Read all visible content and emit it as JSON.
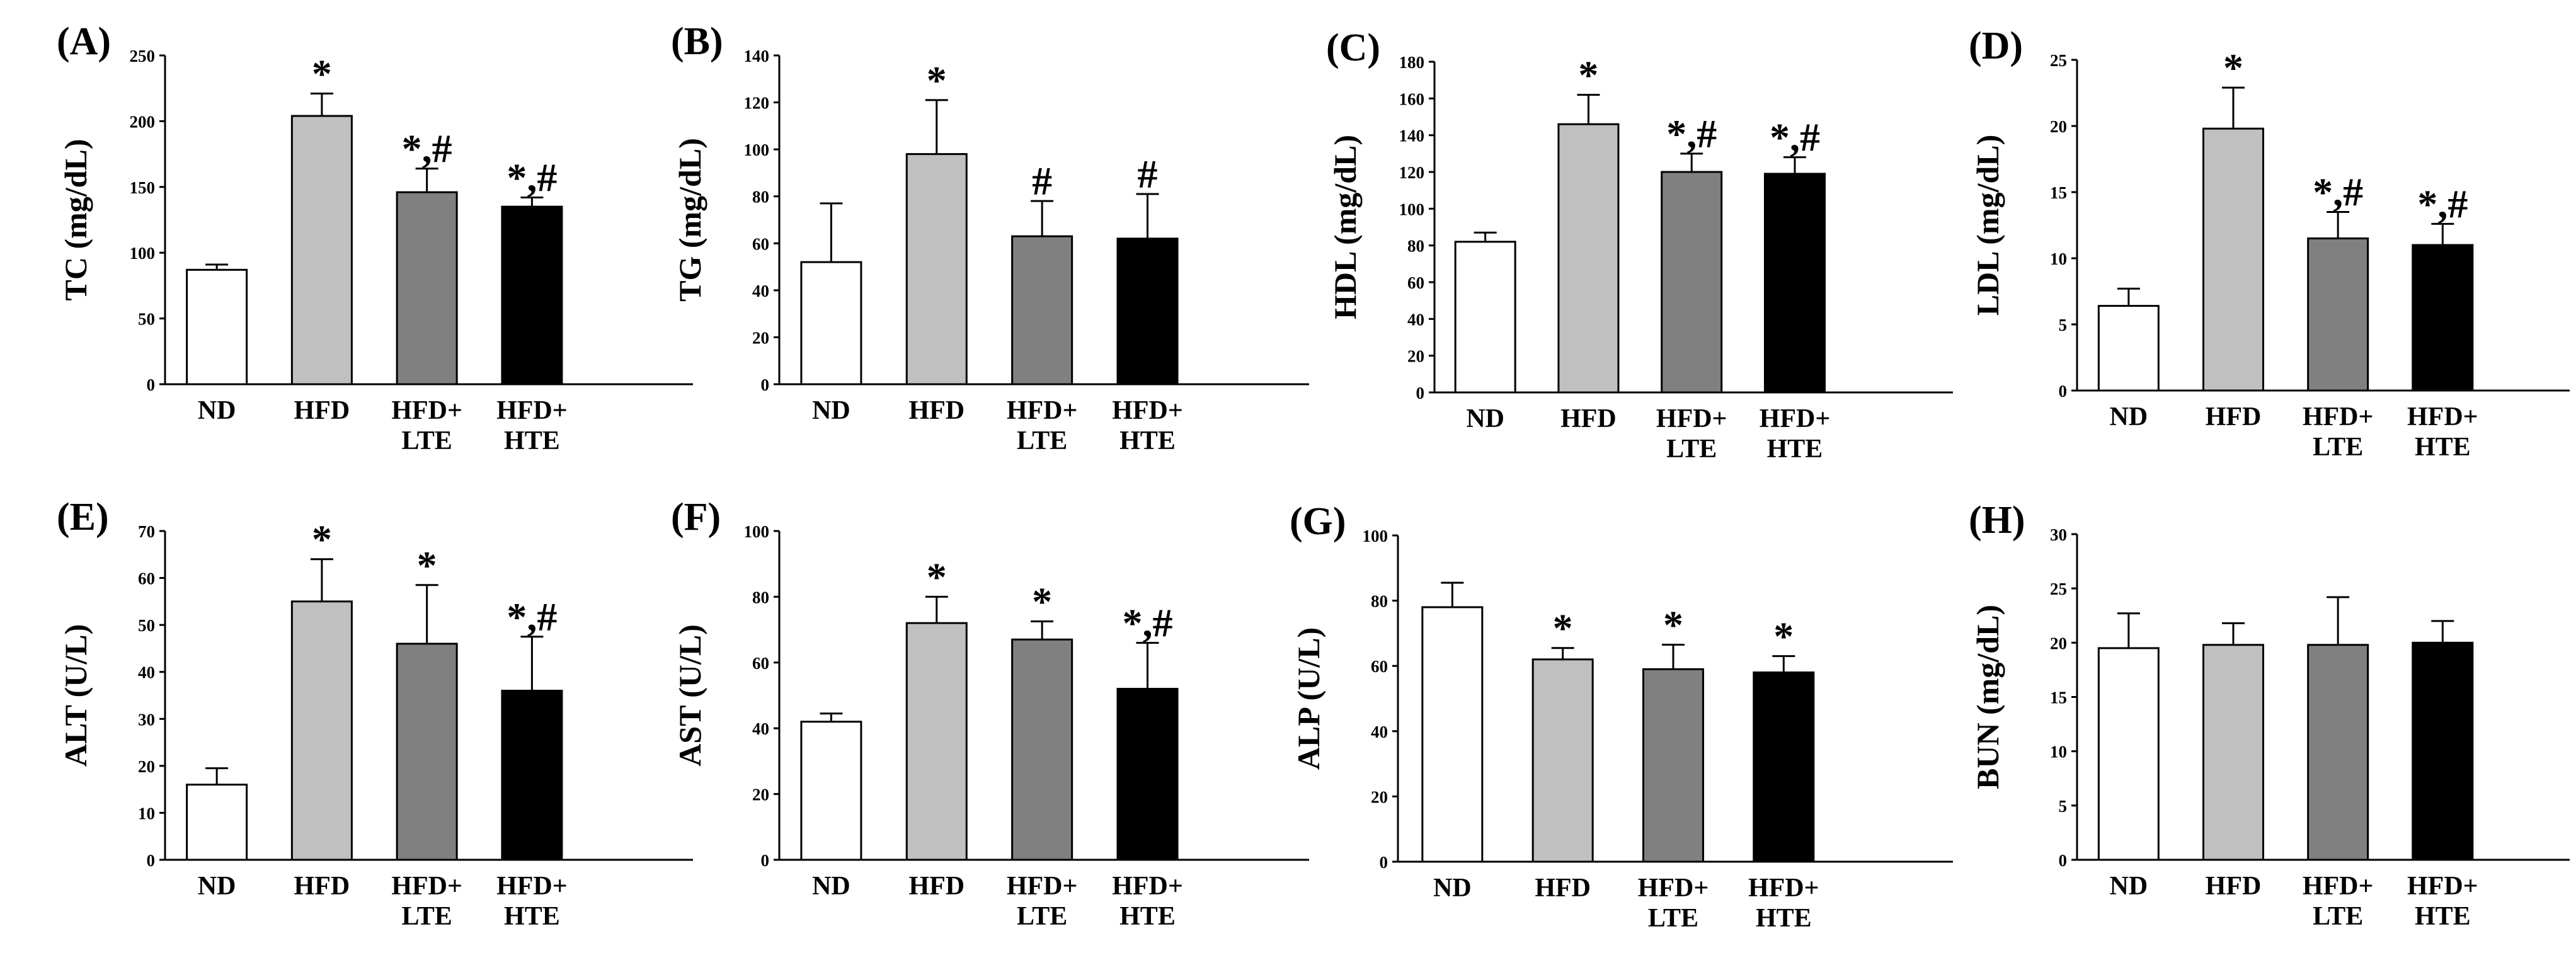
{
  "figure": {
    "background": "#ffffff",
    "bar_colors": [
      "#ffffff",
      "#c0c0c0",
      "#808080",
      "#000000"
    ],
    "error_direction": "upper"
  },
  "chart_data": [
    {
      "panel": "(A)",
      "type": "bar",
      "ylabel": "TC (mg/dL)",
      "ylim": [
        0,
        250
      ],
      "yticks": [
        0,
        50,
        100,
        150,
        200,
        250
      ],
      "categories": [
        [
          "ND"
        ],
        [
          "HFD"
        ],
        [
          "HFD+",
          "LTE"
        ],
        [
          "HFD+",
          "HTE"
        ]
      ],
      "values": [
        87,
        204,
        146,
        135
      ],
      "errors": [
        4,
        17,
        18,
        7
      ],
      "annotations": [
        "",
        "*",
        "*,#",
        "*,#"
      ]
    },
    {
      "panel": "(B)",
      "type": "bar",
      "ylabel": "TG (mg/dL)",
      "ylim": [
        0,
        140
      ],
      "yticks": [
        0,
        20,
        40,
        60,
        80,
        100,
        120,
        140
      ],
      "categories": [
        [
          "ND"
        ],
        [
          "HFD"
        ],
        [
          "HFD+",
          "LTE"
        ],
        [
          "HFD+",
          "HTE"
        ]
      ],
      "values": [
        52,
        98,
        63,
        62
      ],
      "errors": [
        25,
        23,
        15,
        19
      ],
      "annotations": [
        "",
        "*",
        "#",
        "#"
      ]
    },
    {
      "panel": "(C)",
      "type": "bar",
      "ylabel": "HDL (mg/dL)",
      "ylim": [
        0,
        180
      ],
      "yticks": [
        0,
        20,
        40,
        60,
        80,
        100,
        120,
        140,
        160,
        180
      ],
      "categories": [
        [
          "ND"
        ],
        [
          "HFD"
        ],
        [
          "HFD+",
          "LTE"
        ],
        [
          "HFD+",
          "HTE"
        ]
      ],
      "values": [
        82,
        146,
        120,
        119
      ],
      "errors": [
        5,
        16,
        10,
        9
      ],
      "annotations": [
        "",
        "*",
        "*,#",
        "*,#"
      ]
    },
    {
      "panel": "(D)",
      "type": "bar",
      "ylabel": "LDL (mg/dL)",
      "ylim": [
        0,
        25
      ],
      "yticks": [
        0,
        5,
        10,
        15,
        20,
        25
      ],
      "categories": [
        [
          "ND"
        ],
        [
          "HFD"
        ],
        [
          "HFD+",
          "LTE"
        ],
        [
          "HFD+",
          "HTE"
        ]
      ],
      "values": [
        6.4,
        19.8,
        11.5,
        11.0
      ],
      "errors": [
        1.3,
        3.1,
        2.0,
        1.6
      ],
      "annotations": [
        "",
        "*",
        "*,#",
        "*,#"
      ]
    },
    {
      "panel": "(E)",
      "type": "bar",
      "ylabel": "ALT (U/L)",
      "ylim": [
        0,
        70
      ],
      "yticks": [
        0,
        10,
        20,
        30,
        40,
        50,
        60,
        70
      ],
      "categories": [
        [
          "ND"
        ],
        [
          "HFD"
        ],
        [
          "HFD+",
          "LTE"
        ],
        [
          "HFD+",
          "HTE"
        ]
      ],
      "values": [
        16,
        55,
        46,
        36
      ],
      "errors": [
        3.5,
        9,
        12.5,
        11.5
      ],
      "annotations": [
        "",
        "*",
        "*",
        "*,#"
      ]
    },
    {
      "panel": "(F)",
      "type": "bar",
      "ylabel": "AST (U/L)",
      "ylim": [
        0,
        100
      ],
      "yticks": [
        0,
        20,
        40,
        60,
        80,
        100
      ],
      "categories": [
        [
          "ND"
        ],
        [
          "HFD"
        ],
        [
          "HFD+",
          "LTE"
        ],
        [
          "HFD+",
          "HTE"
        ]
      ],
      "values": [
        42,
        72,
        67,
        52
      ],
      "errors": [
        2.5,
        8,
        5.5,
        14
      ],
      "annotations": [
        "",
        "*",
        "*",
        "*,#"
      ]
    },
    {
      "panel": "(G)",
      "type": "bar",
      "ylabel": "ALP (U/L)",
      "ylim": [
        0,
        100
      ],
      "yticks": [
        0,
        20,
        40,
        60,
        80,
        100
      ],
      "categories": [
        [
          "ND"
        ],
        [
          "HFD"
        ],
        [
          "HFD+",
          "LTE"
        ],
        [
          "HFD+",
          "HTE"
        ]
      ],
      "values": [
        78,
        62,
        59,
        58
      ],
      "errors": [
        7.5,
        3.5,
        7.5,
        5
      ],
      "annotations": [
        "",
        "*",
        "*",
        "*"
      ]
    },
    {
      "panel": "(H)",
      "type": "bar",
      "ylabel": "BUN (mg/dL)",
      "ylim": [
        0,
        30
      ],
      "yticks": [
        0,
        5,
        10,
        15,
        20,
        25,
        30
      ],
      "categories": [
        [
          "ND"
        ],
        [
          "HFD"
        ],
        [
          "HFD+",
          "LTE"
        ],
        [
          "HFD+",
          "HTE"
        ]
      ],
      "values": [
        19.5,
        19.8,
        19.8,
        20.0
      ],
      "errors": [
        3.2,
        2.0,
        4.4,
        2.0
      ],
      "annotations": [
        "",
        "",
        "",
        ""
      ]
    }
  ]
}
